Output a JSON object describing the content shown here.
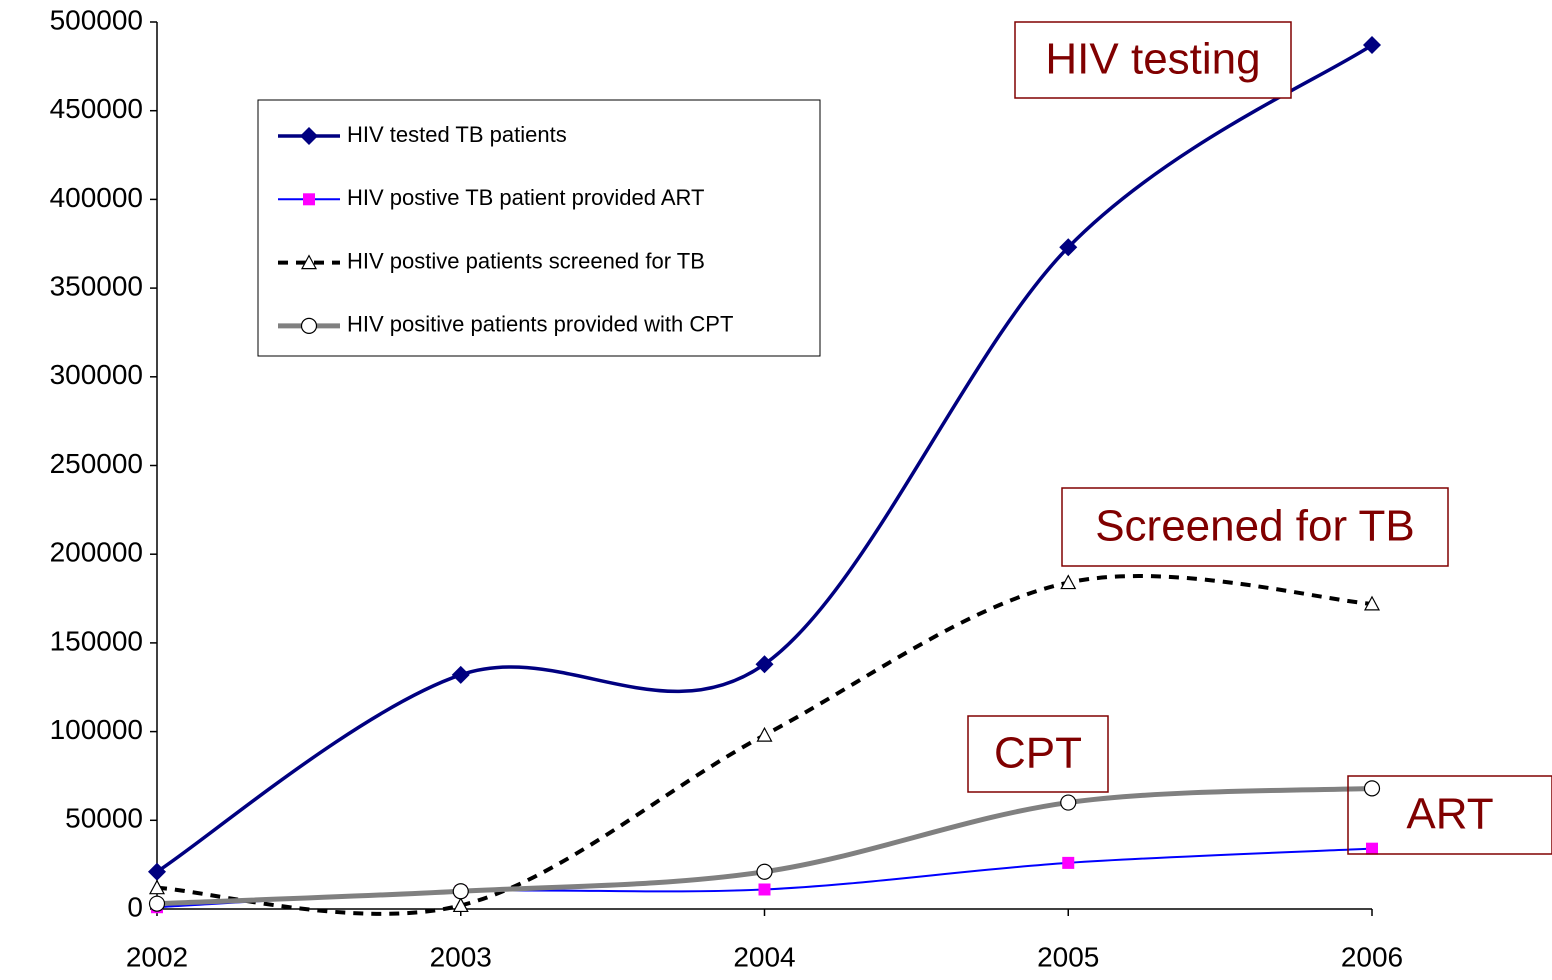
{
  "chart_data": {
    "type": "line",
    "x": [
      2002,
      2003,
      2004,
      2005,
      2006
    ],
    "xlim": [
      2002,
      2006
    ],
    "xticks": [
      2002,
      2003,
      2004,
      2005,
      2006
    ],
    "ylim": [
      0,
      500000
    ],
    "yticks": [
      0,
      50000,
      100000,
      150000,
      200000,
      250000,
      300000,
      350000,
      400000,
      450000,
      500000
    ],
    "series": [
      {
        "name": "HIV tested TB patients",
        "color": "#000080",
        "marker": "diamond",
        "values": [
          21000,
          132000,
          138000,
          373000,
          487000
        ]
      },
      {
        "name": "HIV postive TB patient provided ART",
        "color": "#0000ff",
        "marker_color": "#ff00ff",
        "marker": "square",
        "values": [
          1000,
          10000,
          11000,
          26000,
          34000
        ]
      },
      {
        "name": "HIV postive patients screened for TB",
        "color": "#000000",
        "marker": "triangle",
        "dashed": true,
        "values": [
          12000,
          2000,
          98000,
          184000,
          172000
        ]
      },
      {
        "name": "HIV positive patients provided with CPT",
        "color": "#808080",
        "marker": "circle",
        "values": [
          3000,
          10000,
          21000,
          60000,
          68000
        ]
      }
    ],
    "annotations": [
      "HIV testing",
      "Screened for TB",
      "CPT",
      "ART"
    ],
    "legend": "upper left"
  }
}
